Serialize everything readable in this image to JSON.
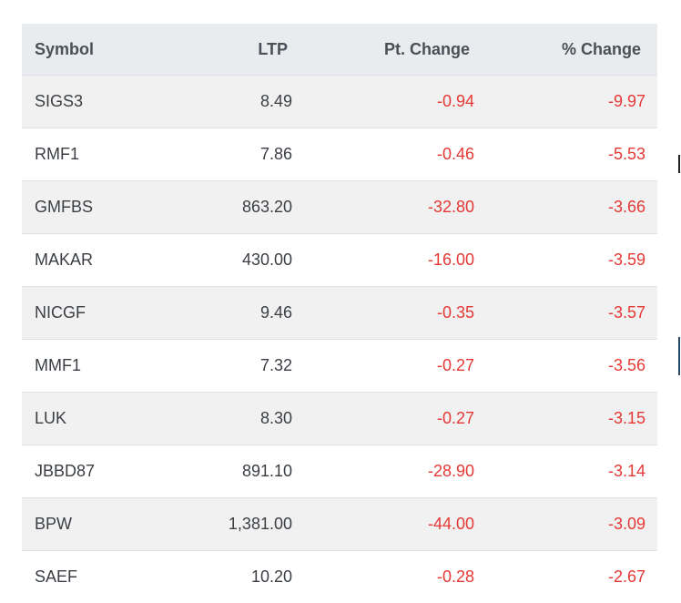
{
  "table": {
    "headers": {
      "symbol": "Symbol",
      "ltp": "LTP",
      "pt_change": "Pt. Change",
      "pct_change": "% Change"
    },
    "negative_color": "#e53935",
    "rows": [
      {
        "symbol": "SIGS3",
        "ltp": "8.49",
        "pt_change": "-0.94",
        "pct_change": "-9.97"
      },
      {
        "symbol": "RMF1",
        "ltp": "7.86",
        "pt_change": "-0.46",
        "pct_change": "-5.53"
      },
      {
        "symbol": "GMFBS",
        "ltp": "863.20",
        "pt_change": "-32.80",
        "pct_change": "-3.66"
      },
      {
        "symbol": "MAKAR",
        "ltp": "430.00",
        "pt_change": "-16.00",
        "pct_change": "-3.59"
      },
      {
        "symbol": "NICGF",
        "ltp": "9.46",
        "pt_change": "-0.35",
        "pct_change": "-3.57"
      },
      {
        "symbol": "MMF1",
        "ltp": "7.32",
        "pt_change": "-0.27",
        "pct_change": "-3.56"
      },
      {
        "symbol": "LUK",
        "ltp": "8.30",
        "pt_change": "-0.27",
        "pct_change": "-3.15"
      },
      {
        "symbol": "JBBD87",
        "ltp": "891.10",
        "pt_change": "-28.90",
        "pct_change": "-3.14"
      },
      {
        "symbol": "BPW",
        "ltp": "1,381.00",
        "pt_change": "-44.00",
        "pct_change": "-3.09"
      },
      {
        "symbol": "SAEF",
        "ltp": "10.20",
        "pt_change": "-0.28",
        "pct_change": "-2.67"
      }
    ]
  }
}
